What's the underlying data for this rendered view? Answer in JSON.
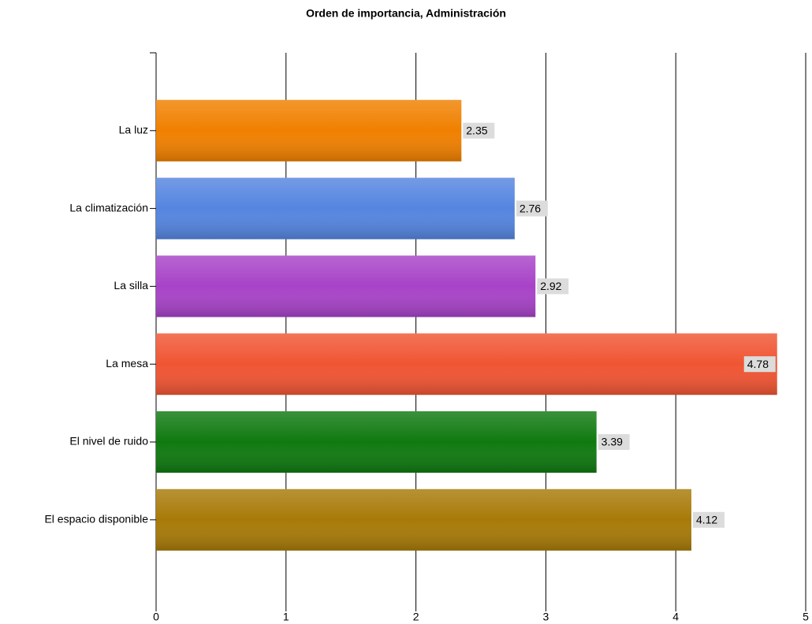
{
  "chart_data": {
    "type": "bar",
    "orientation": "horizontal",
    "title": "Orden de importancia, Administración",
    "categories": [
      "La luz",
      "La climatización",
      "La silla",
      "La mesa",
      "El nivel de ruido",
      "El espacio disponible"
    ],
    "values": [
      2.35,
      2.76,
      2.92,
      4.78,
      3.39,
      4.12
    ],
    "colors": [
      "#f08000",
      "#5585e0",
      "#a843c8",
      "#f05533",
      "#107a10",
      "#a87a08"
    ],
    "xlim": [
      0,
      5
    ],
    "xticks": [
      0,
      1,
      2,
      3,
      4,
      5
    ],
    "grid": true
  }
}
